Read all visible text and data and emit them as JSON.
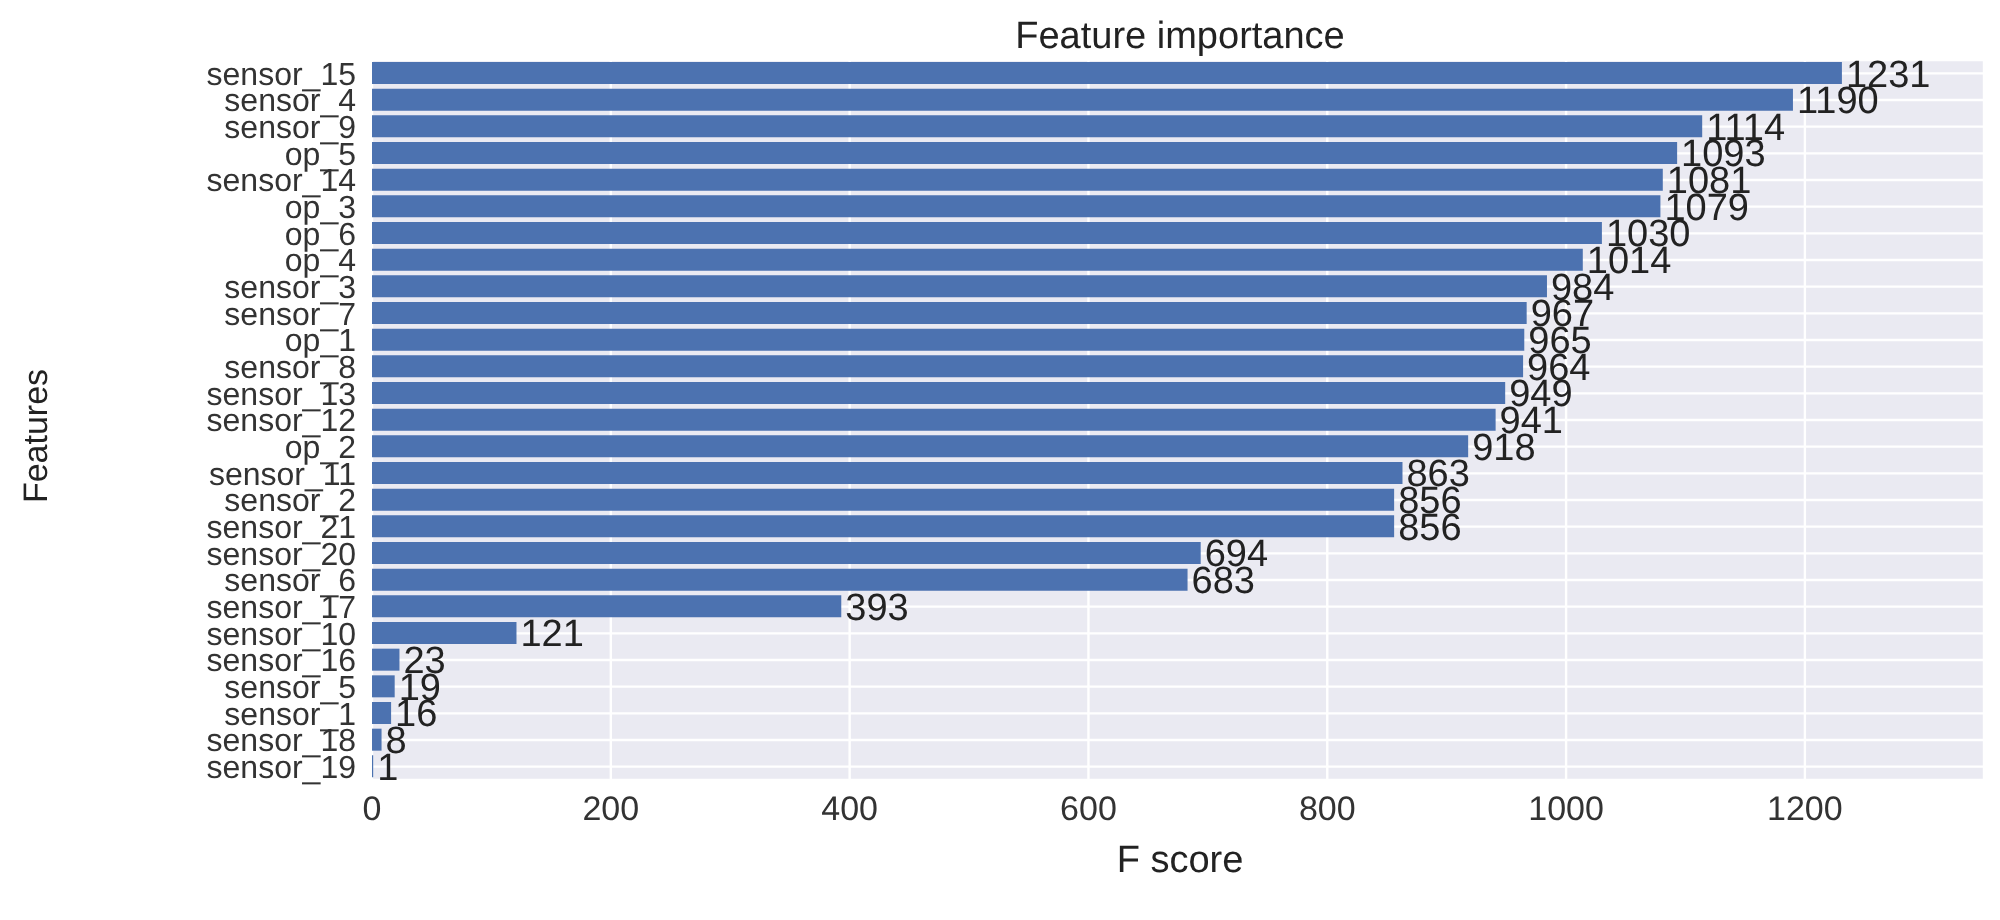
{
  "chart_data": {
    "type": "bar",
    "orientation": "horizontal",
    "title": "Feature importance",
    "xlabel": "F score",
    "ylabel": "Features",
    "categories": [
      "sensor_15",
      "sensor_4",
      "sensor_9",
      "op_5",
      "sensor_14",
      "op_3",
      "op_6",
      "op_4",
      "sensor_3",
      "sensor_7",
      "op_1",
      "sensor_8",
      "sensor_13",
      "sensor_12",
      "op_2",
      "sensor_11",
      "sensor_2",
      "sensor_21",
      "sensor_20",
      "sensor_6",
      "sensor_17",
      "sensor_10",
      "sensor_16",
      "sensor_5",
      "sensor_1",
      "sensor_18",
      "sensor_19"
    ],
    "values": [
      1231,
      1190,
      1114,
      1093,
      1081,
      1079,
      1030,
      1014,
      984,
      967,
      965,
      964,
      949,
      941,
      918,
      863,
      856,
      856,
      694,
      683,
      393,
      121,
      23,
      19,
      16,
      8,
      1
    ],
    "color": "#4c72b0",
    "xlim": [
      0,
      1350
    ],
    "xticks": [
      0,
      200,
      400,
      600,
      800,
      1000,
      1200
    ],
    "grid": true,
    "data_labels": true
  }
}
